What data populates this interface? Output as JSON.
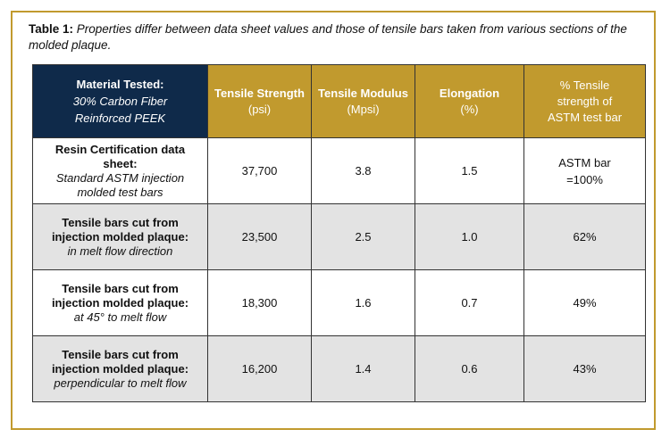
{
  "caption": {
    "lead": "Table 1:",
    "text": "Properties differ between data sheet values and those of tensile bars taken from various sections of the molded plaque."
  },
  "table": {
    "material_header": {
      "title": "Material Tested:",
      "sub_line1": "30% Carbon Fiber",
      "sub_line2": "Reinforced PEEK"
    },
    "columns": [
      {
        "name": "Tensile Strength",
        "unit": "(psi)"
      },
      {
        "name": "Tensile Modulus",
        "unit": "(Mpsi)"
      },
      {
        "name": "Elongation",
        "unit": "(%)"
      }
    ],
    "pct_header": {
      "line1": "% Tensile",
      "line2": "strength of",
      "line3": "ASTM test bar"
    },
    "rows": [
      {
        "label_bold": "Resin Certification data sheet:",
        "label_italic": "Standard ASTM injection molded test bars",
        "tensile_strength": "37,700",
        "tensile_modulus": "3.8",
        "elongation": "1.5",
        "pct_line1": "ASTM bar",
        "pct_line2": "=100%"
      },
      {
        "label_bold": "Tensile bars cut from injection molded plaque:",
        "label_italic": "in melt flow direction",
        "tensile_strength": "23,500",
        "tensile_modulus": "2.5",
        "elongation": "1.0",
        "pct": "62%"
      },
      {
        "label_bold": "Tensile bars cut from injection molded plaque:",
        "label_italic": "at 45° to melt flow",
        "tensile_strength": "18,300",
        "tensile_modulus": "1.6",
        "elongation": "0.7",
        "pct": "49%"
      },
      {
        "label_bold": "Tensile bars cut from injection molded plaque:",
        "label_italic": "perpendicular to melt flow",
        "tensile_strength": "16,200",
        "tensile_modulus": "1.4",
        "elongation": "0.6",
        "pct": "43%"
      }
    ]
  },
  "colors": {
    "navy_header": "#0f2a4a",
    "gold_header": "#c19a2e",
    "frame_border": "#c19a2e",
    "shaded_row": "#e3e3e3"
  }
}
